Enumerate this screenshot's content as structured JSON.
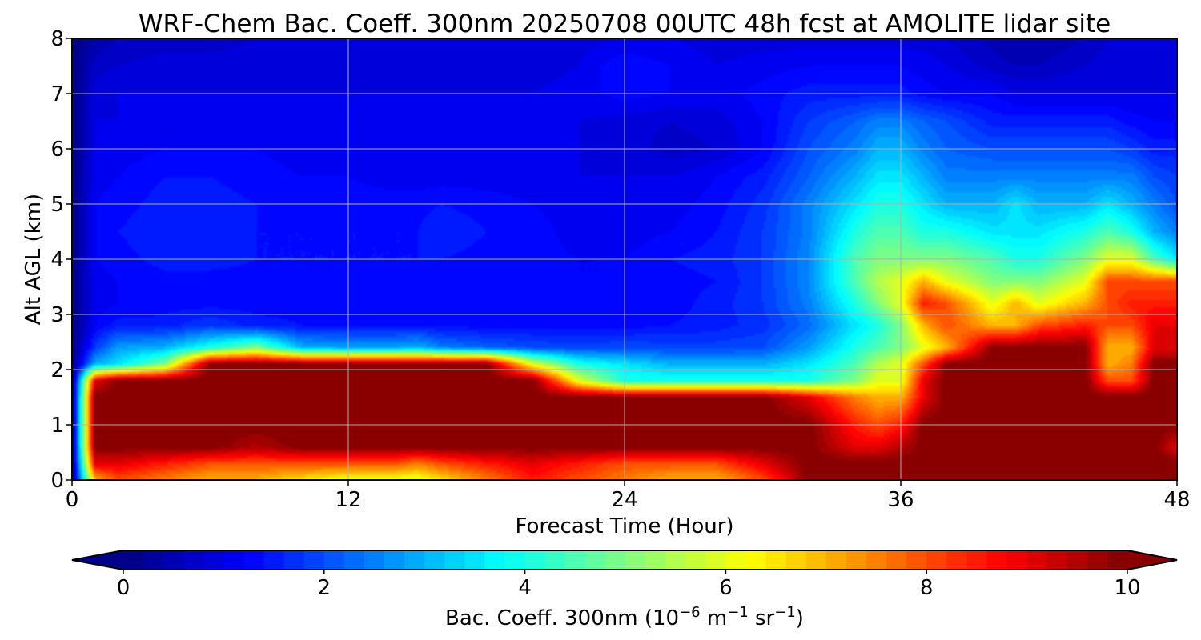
{
  "chart_data": {
    "type": "heatmap",
    "subtype": "filled-contour time-height cross-section",
    "title": "WRF-Chem Bac. Coeff. 300nm  20250708 00UTC 48h fcst at AMOLITE lidar site",
    "xlabel": "Forecast Time (Hour)",
    "ylabel": "Alt AGL (km)",
    "xlim": [
      0,
      48
    ],
    "ylim": [
      0,
      8
    ],
    "xticks": [
      0,
      12,
      24,
      36,
      48
    ],
    "yticks": [
      0,
      1,
      2,
      3,
      4,
      5,
      6,
      7,
      8
    ],
    "grid": true,
    "colormap": "jet",
    "colorbar": {
      "orientation": "horizontal",
      "position": "bottom",
      "label_prefix": "Bac. Coeff. 300nm  (10",
      "label_exp1": "−6",
      "label_mid": " m",
      "label_exp2": "−1",
      "label_mid2": " sr",
      "label_exp3": "−1",
      "label_suffix": ")",
      "range": [
        0,
        10
      ],
      "ticks": [
        0,
        2,
        4,
        6,
        8,
        10
      ],
      "extend": "both"
    },
    "grid_values": {
      "x": [
        0,
        1,
        2,
        4,
        6,
        8,
        10,
        12,
        14,
        15,
        16,
        18,
        20,
        22,
        24,
        26,
        28,
        30,
        32,
        34,
        35,
        36,
        37,
        38,
        40,
        41,
        42,
        44,
        45,
        46,
        47,
        48
      ],
      "y": [
        0,
        0.3,
        0.6,
        1,
        1.5,
        1.8,
        2.1,
        2.4,
        2.8,
        3.2,
        3.6,
        4,
        4.5,
        5,
        5.5,
        6,
        6.5,
        7,
        7.5,
        8
      ],
      "z": [
        [
          0,
          7,
          8,
          7.5,
          7,
          7,
          6.5,
          6,
          6,
          6,
          6.5,
          7.5,
          8.5,
          8,
          7.5,
          7,
          7,
          8,
          10,
          10,
          10,
          10,
          10,
          10,
          10,
          10,
          10,
          10,
          10,
          10,
          10,
          10
        ],
        [
          0,
          9,
          9,
          8.5,
          8,
          8,
          8,
          8,
          8,
          7.5,
          8,
          8.5,
          9,
          8.5,
          8,
          8,
          8,
          9,
          10,
          10,
          10,
          10,
          10,
          10,
          10,
          10,
          10,
          10,
          10,
          10,
          10,
          10
        ],
        [
          0,
          10,
          10,
          10,
          10,
          9.5,
          10,
          10,
          10,
          10,
          10,
          10,
          10,
          10,
          10,
          10,
          10,
          10,
          10,
          9,
          9,
          9.5,
          10,
          10,
          10,
          10,
          10,
          10,
          10,
          10,
          10,
          9
        ],
        [
          0,
          10,
          10,
          10,
          10,
          10,
          10,
          10,
          10,
          10,
          10,
          10,
          10,
          10,
          10,
          10,
          10,
          10,
          10,
          8.5,
          8,
          8.5,
          10,
          10,
          10,
          10,
          10,
          10,
          10,
          10,
          10,
          10
        ],
        [
          0,
          10,
          10,
          10,
          10,
          10,
          10,
          10,
          10,
          10,
          10,
          10,
          10,
          10,
          10,
          10,
          10,
          10,
          9,
          7.5,
          7,
          7,
          9,
          10,
          10,
          10,
          10,
          10,
          10,
          10,
          10,
          10
        ],
        [
          0,
          9,
          10,
          10,
          10,
          10,
          10,
          10,
          10,
          10,
          10,
          10,
          10,
          6,
          4,
          4,
          4,
          4,
          4,
          5,
          6,
          6,
          9,
          10,
          10,
          10,
          10,
          10,
          8,
          8,
          10,
          10
        ],
        [
          0,
          3,
          3.5,
          5,
          10,
          10,
          10,
          10,
          10,
          10,
          10,
          10,
          6,
          4,
          3.5,
          3,
          3,
          3,
          3.5,
          4.5,
          5.5,
          6,
          8,
          10,
          10,
          10,
          10,
          10,
          7,
          7.5,
          10,
          10
        ],
        [
          0,
          1.8,
          2.8,
          3,
          4,
          5,
          3,
          2.8,
          2.8,
          3,
          2.5,
          2.2,
          2,
          1.9,
          2,
          1.9,
          1.9,
          2,
          2.8,
          4,
          4.5,
          5,
          6,
          7,
          10,
          10,
          10,
          10,
          7,
          7,
          9,
          9
        ],
        [
          0,
          1.2,
          1.5,
          1.5,
          1.8,
          1.5,
          1.4,
          1.4,
          1.4,
          1.4,
          1.3,
          1.3,
          1.3,
          1.3,
          1.3,
          1.4,
          1.5,
          1.7,
          2.3,
          3.5,
          4,
          5,
          7,
          8,
          7,
          7,
          8,
          8.5,
          8,
          8,
          9,
          9
        ],
        [
          0,
          1.1,
          1.2,
          1.3,
          1.3,
          1.3,
          1.3,
          1.3,
          1.3,
          1.3,
          1.3,
          1.3,
          1.3,
          1.2,
          1.3,
          1.3,
          1.5,
          1.8,
          2.5,
          4,
          5,
          6,
          8.5,
          8,
          6,
          7,
          6,
          7,
          8,
          8.5,
          8.5,
          8.5
        ],
        [
          0,
          1.1,
          1.2,
          1.3,
          1.3,
          1.3,
          1.3,
          1.3,
          1.3,
          1.3,
          1.3,
          1.3,
          1.2,
          1.2,
          1.2,
          1.3,
          1.4,
          1.8,
          2.6,
          4.5,
          5.5,
          6,
          7,
          6,
          5,
          5,
          5,
          6,
          8,
          8,
          8,
          8
        ],
        [
          0,
          1.2,
          1.3,
          1.5,
          1.5,
          1.4,
          1.4,
          1.4,
          1.4,
          1.4,
          1.4,
          1.3,
          1.3,
          1.2,
          1.2,
          1.4,
          1.5,
          1.8,
          2.6,
          4.5,
          5,
          5,
          5,
          5,
          4.5,
          4,
          4,
          5,
          6,
          6,
          4.5,
          3.5
        ],
        [
          0,
          1.2,
          1.4,
          1.6,
          1.5,
          1.4,
          1.4,
          1.4,
          1.4,
          1.4,
          1.6,
          1.4,
          1.3,
          1.1,
          1.1,
          1.2,
          1.4,
          1.8,
          2.5,
          4,
          4.5,
          4.5,
          4,
          4,
          3.5,
          3.5,
          3.5,
          4,
          4.5,
          4,
          3,
          2.5
        ],
        [
          0,
          1.2,
          1.3,
          1.5,
          1.5,
          1.4,
          1.3,
          1.3,
          1.3,
          1.3,
          1.4,
          1.3,
          1.2,
          1.1,
          1.1,
          1.1,
          1.3,
          1.7,
          2.5,
          3.5,
          4,
          4,
          3.5,
          3,
          3,
          3.5,
          3,
          3,
          3.5,
          3,
          2.5,
          2
        ],
        [
          0,
          1.1,
          1.2,
          1.4,
          1.4,
          1.3,
          1.2,
          1.2,
          1.1,
          1.1,
          1.1,
          1.1,
          1.1,
          1.0,
          1.0,
          1.0,
          1.2,
          1.5,
          2.2,
          3,
          3.5,
          3.5,
          3,
          2.5,
          2.5,
          2.5,
          2.5,
          2.5,
          2.5,
          2.5,
          2,
          1.8
        ],
        [
          0,
          1.0,
          1.1,
          1.2,
          1.2,
          1.2,
          1.1,
          1.1,
          1.0,
          1.0,
          1.0,
          1.0,
          1.0,
          1.0,
          0.9,
          0.7,
          0.8,
          1.2,
          2,
          2.5,
          3,
          3,
          2.5,
          2.2,
          2,
          2,
          2,
          2,
          2,
          1.8,
          1.5,
          1.5
        ],
        [
          0,
          1.0,
          1.0,
          1.1,
          1.1,
          1.1,
          1.0,
          1.0,
          1.0,
          1.0,
          1.0,
          1.0,
          1.0,
          1.0,
          0.9,
          0.8,
          0.9,
          1.2,
          1.8,
          2.2,
          2.5,
          2.5,
          2.2,
          2,
          1.5,
          1.5,
          1.5,
          1.5,
          1.5,
          1.3,
          1.2,
          1.2
        ],
        [
          0,
          0.9,
          1.0,
          1.0,
          1.0,
          1.0,
          1.0,
          1.0,
          1.0,
          1.0,
          1.0,
          1.0,
          1.0,
          1.1,
          1.3,
          1.2,
          1.1,
          1.3,
          1.5,
          1.5,
          1.5,
          1.5,
          1.3,
          1.2,
          1.2,
          1.0,
          1.0,
          1.0,
          1.0,
          1.0,
          1.0,
          1.0
        ],
        [
          0,
          0.7,
          0.8,
          0.9,
          0.9,
          0.9,
          0.9,
          0.9,
          0.9,
          0.9,
          0.9,
          0.9,
          0.9,
          1.0,
          1.4,
          1.2,
          1.0,
          1.1,
          1.2,
          1.2,
          1.2,
          1.2,
          1.1,
          1.0,
          0.7,
          0.6,
          0.6,
          0.8,
          0.9,
          0.9,
          0.9,
          0.9
        ],
        [
          0,
          0.4,
          0.6,
          0.7,
          0.7,
          0.8,
          0.8,
          0.8,
          0.8,
          0.8,
          0.8,
          0.8,
          0.8,
          0.9,
          1.0,
          1.0,
          0.9,
          0.9,
          0.9,
          0.9,
          0.9,
          0.9,
          0.9,
          0.8,
          0.5,
          0.4,
          0.4,
          0.6,
          0.8,
          0.8,
          0.8,
          0.8
        ]
      ]
    }
  }
}
